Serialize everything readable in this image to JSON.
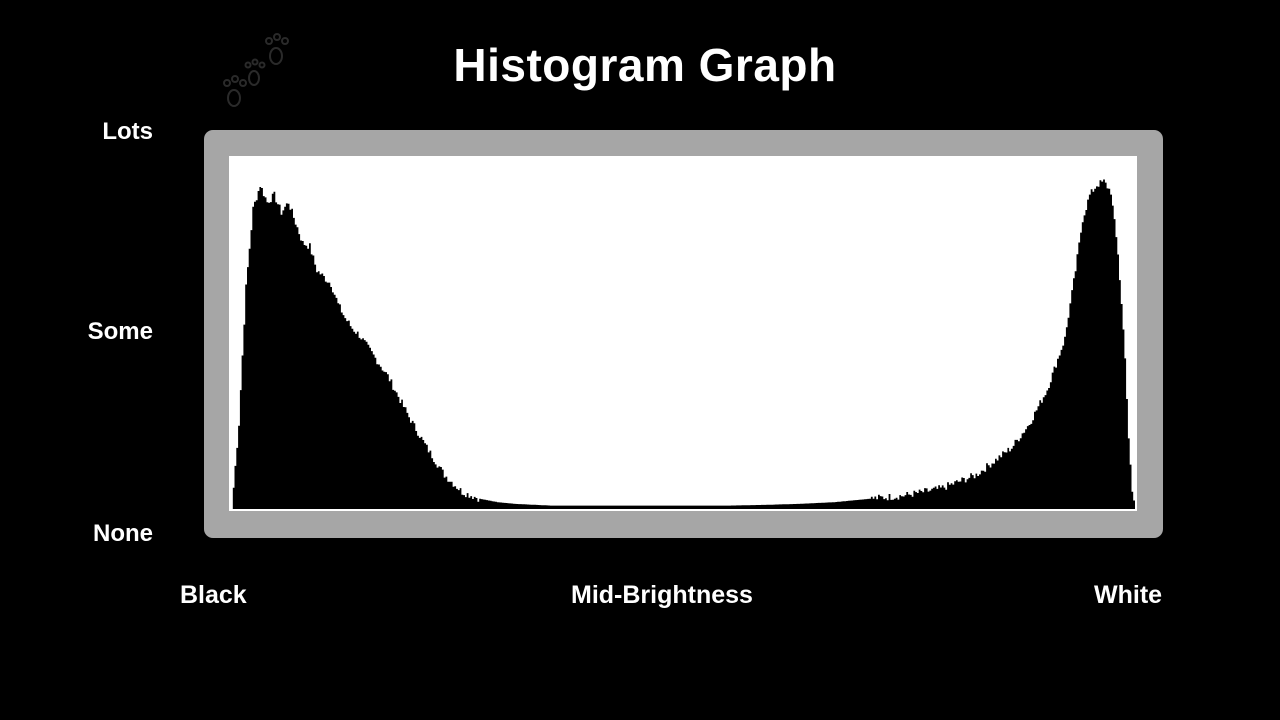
{
  "chart_data": {
    "type": "area",
    "title": "Histogram Graph",
    "y_tick_labels": [
      "Lots",
      "Some",
      "None"
    ],
    "x_tick_labels": [
      "Black",
      "Mid-Brightness",
      "White"
    ],
    "xlim": [
      0,
      255
    ],
    "ylim": [
      0,
      100
    ],
    "grid": false,
    "x": [
      0,
      2,
      4,
      6,
      8,
      10,
      12,
      14,
      16,
      18,
      20,
      22,
      24,
      26,
      28,
      30,
      32,
      34,
      36,
      38,
      40,
      42,
      44,
      46,
      48,
      50,
      55,
      60,
      65,
      70,
      75,
      80,
      90,
      100,
      110,
      120,
      130,
      140,
      150,
      160,
      170,
      180,
      190,
      200,
      210,
      215,
      220,
      225,
      230,
      235,
      238,
      240,
      242,
      244,
      246,
      248,
      250,
      252,
      253,
      254,
      255
    ],
    "values": [
      0,
      25,
      65,
      88,
      95,
      90,
      92,
      87,
      90,
      84,
      78,
      77,
      70,
      68,
      66,
      60,
      56,
      53,
      51,
      48,
      45,
      42,
      39,
      35,
      31,
      27,
      18,
      10,
      5,
      3,
      2,
      1.5,
      1,
      1,
      1,
      1,
      1,
      1,
      1.2,
      1.5,
      2,
      3,
      4,
      6,
      10,
      14,
      18,
      25,
      35,
      50,
      70,
      85,
      92,
      95,
      96,
      93,
      75,
      45,
      20,
      5,
      0
    ],
    "colors": {
      "background": "#000000",
      "frame": "#a6a6a6",
      "plot_area": "#ffffff",
      "fill": "#000000",
      "text": "#ffffff"
    }
  }
}
